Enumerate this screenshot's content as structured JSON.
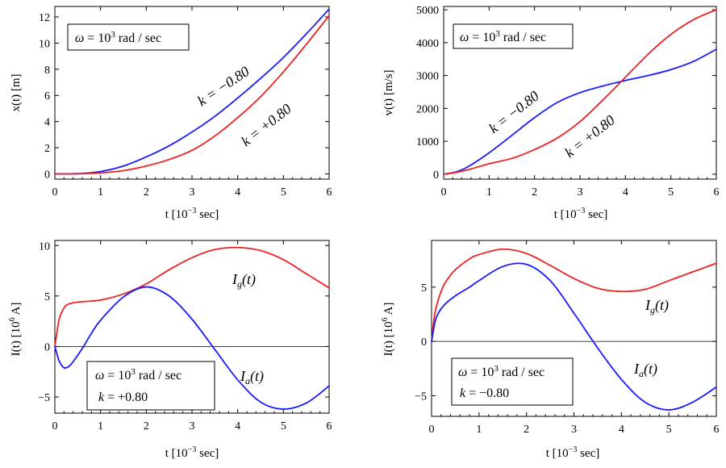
{
  "colors": {
    "red": "#ee2222",
    "blue": "#1a1aff"
  },
  "chart_data": [
    {
      "type": "line",
      "title": "",
      "xlabel": "t [10^-3 sec]",
      "ylabel": "x(t) [m]",
      "xlim": [
        0,
        6
      ],
      "ylim": [
        -0.4,
        12.8
      ],
      "xticks": [
        0,
        1,
        2,
        3,
        4,
        5,
        6
      ],
      "yticks": [
        0,
        2,
        4,
        6,
        8,
        10,
        12
      ],
      "zero_line": false,
      "box_lines": [
        "ω = 10³ rad/sec"
      ],
      "series": [
        {
          "name": "k = −0.80",
          "color": "blue",
          "x": [
            0,
            0.5,
            1,
            1.5,
            2,
            2.5,
            3,
            3.5,
            4,
            4.5,
            5,
            5.5,
            6
          ],
          "y": [
            0,
            0.02,
            0.18,
            0.6,
            1.3,
            2.15,
            3.2,
            4.4,
            5.8,
            7.3,
            8.9,
            10.7,
            12.6
          ]
        },
        {
          "name": "k = +0.80",
          "color": "red",
          "x": [
            0,
            0.5,
            1,
            1.5,
            2,
            2.5,
            3,
            3.5,
            4,
            4.5,
            5,
            5.5,
            6
          ],
          "y": [
            0,
            0.01,
            0.08,
            0.25,
            0.6,
            1.1,
            1.8,
            2.9,
            4.3,
            5.9,
            7.8,
            9.9,
            12.1
          ]
        }
      ],
      "labels": [
        "k = −0.80",
        "k = +0.80"
      ]
    },
    {
      "type": "line",
      "title": "",
      "xlabel": "t [10^-3 sec]",
      "ylabel": "v(t) [m/s]",
      "xlim": [
        0,
        6
      ],
      "ylim": [
        -150,
        5100
      ],
      "xticks": [
        0,
        1,
        2,
        3,
        4,
        5,
        6
      ],
      "yticks": [
        0,
        1000,
        2000,
        3000,
        4000,
        5000
      ],
      "zero_line": false,
      "box_lines": [
        "ω = 10³ rad/sec"
      ],
      "series": [
        {
          "name": "k = −0.80",
          "color": "blue",
          "x": [
            0,
            0.3,
            0.6,
            1,
            1.5,
            2,
            2.5,
            3,
            3.5,
            4,
            4.5,
            5,
            5.5,
            6
          ],
          "y": [
            0,
            80,
            280,
            650,
            1180,
            1720,
            2180,
            2480,
            2680,
            2850,
            3000,
            3180,
            3430,
            3800
          ]
        },
        {
          "name": "k = +0.80",
          "color": "red",
          "x": [
            0,
            0.3,
            0.6,
            1,
            1.5,
            2,
            2.5,
            3,
            3.5,
            4,
            4.5,
            5,
            5.5,
            6
          ],
          "y": [
            0,
            60,
            160,
            320,
            480,
            750,
            1100,
            1600,
            2250,
            2950,
            3650,
            4250,
            4700,
            5000
          ]
        }
      ],
      "labels": [
        "k = −0.80",
        "k = +0.80"
      ]
    },
    {
      "type": "line",
      "title": "",
      "xlabel": "t [10^-3 sec]",
      "ylabel": "I(t) [10^6 A]",
      "xlim": [
        0,
        6
      ],
      "ylim": [
        -6.6,
        10.5
      ],
      "xticks": [
        0,
        1,
        2,
        3,
        4,
        5,
        6
      ],
      "yticks": [
        -5,
        0,
        5,
        10
      ],
      "zero_line": true,
      "box_lines": [
        "ω = 10³ rad/sec",
        "k = +0.80"
      ],
      "series": [
        {
          "name": "I_g(t)",
          "color": "red",
          "x": [
            0,
            0.05,
            0.1,
            0.2,
            0.3,
            0.5,
            1,
            1.5,
            2,
            2.5,
            3,
            3.5,
            4,
            4.5,
            5,
            5.5,
            6
          ],
          "y": [
            0,
            1.5,
            2.8,
            3.8,
            4.2,
            4.4,
            4.6,
            5.2,
            6.2,
            7.6,
            8.8,
            9.6,
            9.8,
            9.5,
            8.6,
            7.2,
            5.8
          ]
        },
        {
          "name": "I_a(t)",
          "color": "blue",
          "x": [
            0,
            0.05,
            0.1,
            0.2,
            0.3,
            0.4,
            0.6,
            0.8,
            1,
            1.5,
            2,
            2.5,
            3,
            3.5,
            4,
            4.5,
            5,
            5.5,
            6
          ],
          "y": [
            0,
            -0.8,
            -1.5,
            -2.1,
            -2.0,
            -1.5,
            -0.2,
            1.3,
            2.6,
            4.9,
            5.9,
            5.0,
            2.7,
            -0.3,
            -3.3,
            -5.5,
            -6.2,
            -5.6,
            -3.9
          ]
        }
      ],
      "labels": [
        "I_g(t)",
        "I_a(t)"
      ]
    },
    {
      "type": "line",
      "title": "",
      "xlabel": "t [10^-3 sec]",
      "ylabel": "I(t) [10^6 A]",
      "xlim": [
        0,
        6
      ],
      "ylim": [
        -6.9,
        9.3
      ],
      "xticks": [
        0,
        1,
        2,
        3,
        4,
        5,
        6
      ],
      "yticks": [
        -5,
        0,
        5
      ],
      "zero_line": true,
      "box_lines": [
        "ω = 10³ rad/sec",
        "k = −0.80"
      ],
      "series": [
        {
          "name": "I_g(t)",
          "color": "red",
          "x": [
            0,
            0.05,
            0.1,
            0.2,
            0.3,
            0.5,
            0.8,
            1,
            1.5,
            2,
            2.5,
            3,
            3.5,
            4,
            4.5,
            5,
            5.5,
            6
          ],
          "y": [
            0,
            2.0,
            3.2,
            4.6,
            5.5,
            6.6,
            7.6,
            8.0,
            8.5,
            8.1,
            7.0,
            5.8,
            4.9,
            4.6,
            4.8,
            5.6,
            6.4,
            7.2
          ]
        },
        {
          "name": "I_a(t)",
          "color": "blue",
          "x": [
            0,
            0.05,
            0.1,
            0.2,
            0.3,
            0.5,
            0.8,
            1,
            1.5,
            2,
            2.5,
            3,
            3.5,
            4,
            4.5,
            5,
            5.5,
            6
          ],
          "y": [
            0,
            1.3,
            2.2,
            3.0,
            3.5,
            4.2,
            5.0,
            5.6,
            6.9,
            7.1,
            5.6,
            2.6,
            -0.6,
            -3.5,
            -5.6,
            -6.3,
            -5.6,
            -4.2
          ]
        }
      ],
      "labels": [
        "I_g(t)",
        "I_a(t)"
      ]
    }
  ]
}
